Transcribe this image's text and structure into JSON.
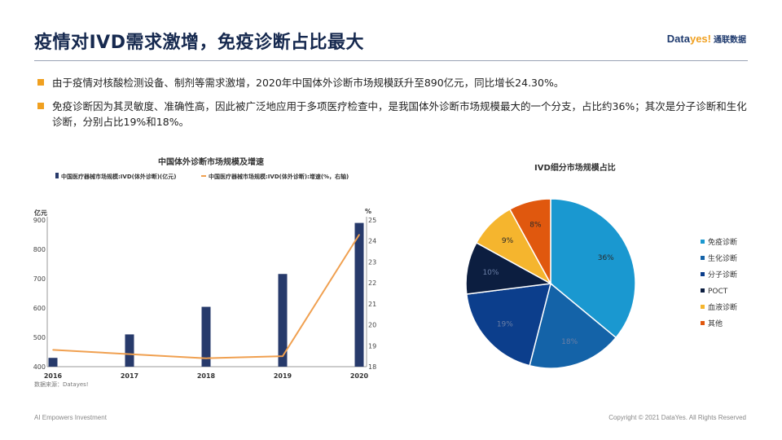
{
  "header": {
    "title": "疫情对IVD需求激增，免疫诊断占比最大",
    "logo_a": "Data",
    "logo_b": "yes!",
    "logo_c": "通联数据"
  },
  "bullets": [
    "由于疫情对核酸检测设备、制剂等需求激增，2020年中国体外诊断市场规模跃升至890亿元，同比增长24.30%。",
    "免疫诊断因为其灵敏度、准确性高，因此被广泛地应用于多项医疗检查中，是我国体外诊断市场规模最大的一个分支，占比约36%；其次是分子诊断和生化诊断，分别占比19%和18%。"
  ],
  "footer": {
    "left": "AI Empowers Investment",
    "right": "Copyright © 2021 DataYes. All Rights Reserved"
  },
  "colors": {
    "bar": "#273a6b",
    "line": "#f0a050",
    "accent": "#f0a020"
  },
  "chart_data": [
    {
      "type": "bar",
      "title": "中国体外诊断市场规模及增速",
      "categories": [
        "2016",
        "2017",
        "2018",
        "2019",
        "2020"
      ],
      "series": [
        {
          "name": "中国医疗器械市场规模:IVD(体外诊断)(亿元)",
          "type": "bar",
          "axis": "left",
          "values": [
            430,
            510,
            604,
            716,
            890
          ]
        },
        {
          "name": "中国医疗器械市场规模:IVD(体外诊断):增速(%，右轴)",
          "type": "line",
          "axis": "right",
          "values": [
            18.8,
            18.6,
            18.4,
            18.5,
            24.3
          ]
        }
      ],
      "ylabel_left": "亿元",
      "ylabel_right": "%",
      "ylim_left": [
        400,
        900
      ],
      "yticks_left": [
        400,
        500,
        600,
        700,
        800,
        900
      ],
      "ylim_right": [
        18,
        25
      ],
      "yticks_right": [
        18,
        19,
        20,
        21,
        22,
        23,
        24,
        25
      ],
      "legend": "top",
      "source": "数据来源：Datayes!",
      "grid": false
    },
    {
      "type": "pie",
      "title": "IVD细分市场规模占比",
      "labels": [
        "免疫诊断",
        "生化诊断",
        "分子诊断",
        "POCT",
        "血液诊断",
        "其他"
      ],
      "values": [
        36,
        18,
        19,
        10,
        9,
        8
      ],
      "colors": [
        "#1a98d0",
        "#1463a8",
        "#0c3e8c",
        "#0c1e40",
        "#f5b52e",
        "#e0580e"
      ],
      "legend": "right"
    }
  ]
}
